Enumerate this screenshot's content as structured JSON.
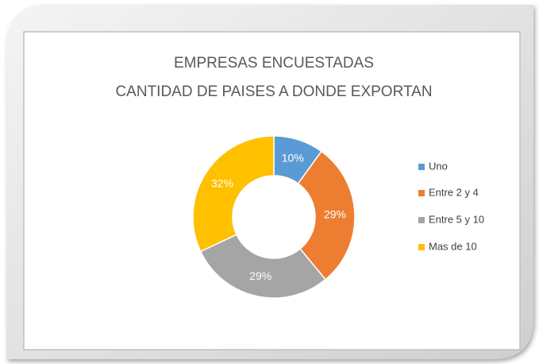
{
  "chart_data": {
    "type": "donut",
    "title": [
      "EMPRESAS ENCUESTADAS",
      "CANTIDAD DE PAISES A DONDE EXPORTAN"
    ],
    "categories": [
      "Uno",
      "Entre 2 y 4",
      "Entre 5 y 10",
      "Mas de 10"
    ],
    "values": [
      10,
      29,
      29,
      32
    ],
    "value_labels": [
      "10%",
      "29%",
      "29%",
      "32%"
    ],
    "colors": [
      "#5b9bd5",
      "#ed7d31",
      "#a5a5a5",
      "#ffc000"
    ],
    "legend": "right"
  }
}
